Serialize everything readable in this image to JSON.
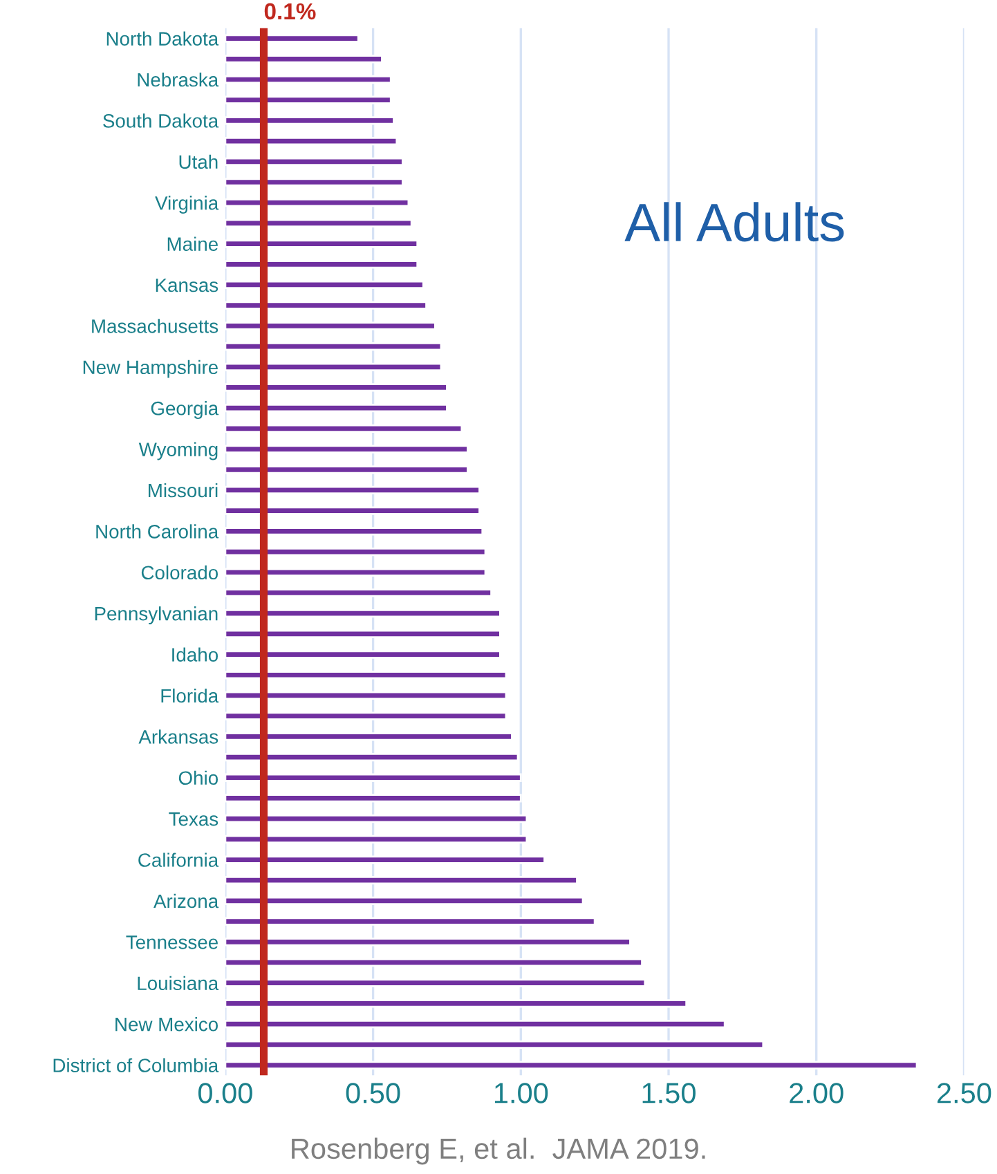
{
  "chart_data": {
    "type": "bar",
    "orientation": "horizontal",
    "categories": [
      "North Dakota",
      null,
      "Nebraska",
      null,
      "South Dakota",
      null,
      "Utah",
      null,
      "Virginia",
      null,
      "Maine",
      null,
      "Kansas",
      null,
      "Massachusetts",
      null,
      "New Hampshire",
      null,
      "Georgia",
      null,
      "Wyoming",
      null,
      "Missouri",
      null,
      "North Carolina",
      null,
      "Colorado",
      null,
      "Pennsylvanian",
      null,
      "Idaho",
      null,
      "Florida",
      null,
      "Arkansas",
      null,
      "Ohio",
      null,
      "Texas",
      null,
      "California",
      null,
      "Arizona",
      null,
      "Tennessee",
      null,
      "Louisiana",
      null,
      "New Mexico",
      null,
      "District of Columbia"
    ],
    "values": [
      0.45,
      0.53,
      0.56,
      0.56,
      0.57,
      0.58,
      0.6,
      0.6,
      0.62,
      0.63,
      0.65,
      0.65,
      0.67,
      0.68,
      0.71,
      0.73,
      0.73,
      0.75,
      0.75,
      0.8,
      0.82,
      0.82,
      0.86,
      0.86,
      0.87,
      0.88,
      0.88,
      0.9,
      0.93,
      0.93,
      0.93,
      0.95,
      0.95,
      0.95,
      0.97,
      0.99,
      1.0,
      1.0,
      1.02,
      1.02,
      1.08,
      1.19,
      1.21,
      1.25,
      1.37,
      1.41,
      1.42,
      1.56,
      1.69,
      1.82,
      2.34
    ],
    "color": "#7030a0",
    "xlim": [
      0,
      2.5
    ],
    "xticks": [
      {
        "value": 0,
        "label": "0.00"
      },
      {
        "value": 0.5,
        "label": "0.50"
      },
      {
        "value": 1,
        "label": "1.00"
      },
      {
        "value": 1.5,
        "label": "1.50"
      },
      {
        "value": 2,
        "label": "2.00"
      },
      {
        "value": 2.5,
        "label": "2.50"
      }
    ],
    "grid": "x",
    "legend": false,
    "ref_lines": [
      {
        "axis": "x",
        "value": 0.13,
        "label": "0.1%",
        "color": "#c0281e"
      }
    ],
    "annotations": [
      "All Adults",
      "Rosenberg E, et al.  JAMA 2019."
    ]
  }
}
